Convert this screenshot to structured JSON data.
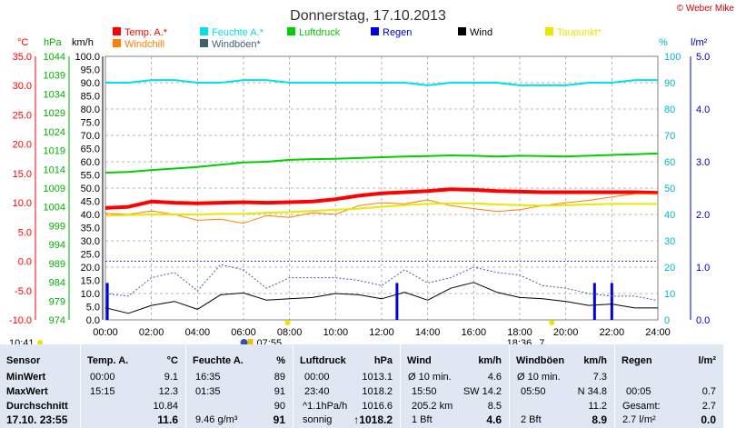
{
  "title": "Donnerstag, 17.10.2013",
  "copyright": "© Weber Mike",
  "legend": [
    {
      "label": "Temp. A.*",
      "color": "#ff0000"
    },
    {
      "label": "Feuchte A.*",
      "color": "#00e0e8"
    },
    {
      "label": "Luftdruck",
      "color": "#00d000"
    },
    {
      "label": "Regen",
      "color": "#0000e0"
    },
    {
      "label": "Wind",
      "color": "#000000"
    },
    {
      "label": "Taupunkt*",
      "color": "#e8e800"
    },
    {
      "label": "Windchill",
      "color": "#ff7f00"
    },
    {
      "label": "Windböen*",
      "color": "#406070"
    }
  ],
  "units": {
    "temp": "°C",
    "pressure": "hPa",
    "wind": "km/h",
    "humidity": "%",
    "rain": "l/m²"
  },
  "axes": {
    "temp_ticks": [
      "35.0",
      "30.0",
      "25.0",
      "20.0",
      "15.0",
      "10.0",
      "5.0",
      "0.0",
      "-5.0",
      "-10.0"
    ],
    "pressure_ticks": [
      "1044",
      "1039",
      "1034",
      "1029",
      "1024",
      "1019",
      "1014",
      "1009",
      "1004",
      "999",
      "994",
      "989",
      "984",
      "979",
      "974"
    ],
    "wind_ticks": [
      "100.0",
      "95.0",
      "90.0",
      "85.0",
      "80.0",
      "75.0",
      "70.0",
      "65.0",
      "60.0",
      "55.0",
      "50.0",
      "45.0",
      "40.0",
      "35.0",
      "30.0",
      "25.0",
      "20.0",
      "15.0",
      "10.0",
      "5.0",
      "0.0"
    ],
    "humidity_ticks": [
      "100",
      "90",
      "80",
      "70",
      "60",
      "50",
      "40",
      "30",
      "20",
      "10",
      "0"
    ],
    "rain_ticks": [
      "5.0",
      "4.0",
      "3.0",
      "2.0",
      "1.0",
      "0.0"
    ],
    "x_ticks": [
      "00:00",
      "02:00",
      "04:00",
      "06:00",
      "08:00",
      "10:00",
      "12:00",
      "14:00",
      "16:00",
      "18:00",
      "20:00",
      "22:00",
      "24:00"
    ]
  },
  "sun": {
    "moonrise": "10:41",
    "sunrise": "07:55",
    "sunset": "18:36",
    "moon_phase": "7"
  },
  "chart_data": {
    "type": "line",
    "x": [
      "00:00",
      "01:00",
      "02:00",
      "03:00",
      "04:00",
      "05:00",
      "06:00",
      "07:00",
      "08:00",
      "09:00",
      "10:00",
      "11:00",
      "12:00",
      "13:00",
      "14:00",
      "15:00",
      "16:00",
      "17:00",
      "18:00",
      "19:00",
      "20:00",
      "21:00",
      "22:00",
      "23:00",
      "24:00"
    ],
    "xlim": [
      "00:00",
      "24:00"
    ],
    "grid": true,
    "series": [
      {
        "name": "Temp. A.*",
        "axis": "temp",
        "values": [
          9.1,
          9.3,
          10.2,
          10.0,
          9.9,
          10.0,
          10.1,
          10.0,
          10.1,
          10.2,
          10.6,
          11.2,
          11.6,
          11.8,
          12.0,
          12.3,
          12.2,
          12.0,
          11.9,
          11.8,
          11.8,
          11.8,
          11.8,
          11.8,
          11.7
        ]
      },
      {
        "name": "Windchill",
        "axis": "temp",
        "values": [
          8.2,
          8.0,
          8.6,
          8.0,
          7.0,
          7.2,
          6.5,
          7.8,
          7.5,
          8.3,
          8.0,
          9.5,
          10.0,
          9.8,
          10.5,
          9.5,
          9.0,
          8.5,
          8.8,
          9.5,
          10.0,
          10.4,
          11.0,
          11.5,
          11.5
        ]
      },
      {
        "name": "Taupunkt*",
        "axis": "temp",
        "values": [
          7.8,
          7.9,
          8.0,
          8.0,
          8.0,
          8.1,
          8.1,
          8.3,
          8.4,
          8.6,
          8.8,
          9.0,
          9.3,
          9.6,
          9.8,
          9.9,
          9.9,
          9.7,
          9.6,
          9.5,
          9.6,
          9.7,
          9.8,
          9.8,
          9.8
        ]
      },
      {
        "name": "Feuchte A.*",
        "axis": "humidity",
        "values": [
          90,
          90,
          91,
          91,
          90,
          90,
          91,
          91,
          90,
          90,
          90,
          90,
          90,
          90,
          89,
          90,
          90,
          90,
          89,
          89,
          89,
          90,
          90,
          91,
          91
        ]
      },
      {
        "name": "Luftdruck",
        "axis": "pressure",
        "values": [
          1013.1,
          1013.3,
          1013.8,
          1014.2,
          1014.6,
          1015.2,
          1015.8,
          1016.0,
          1016.5,
          1016.7,
          1016.8,
          1017.0,
          1017.2,
          1017.4,
          1017.5,
          1017.7,
          1017.6,
          1017.4,
          1017.6,
          1017.5,
          1017.4,
          1017.6,
          1017.8,
          1018.0,
          1018.2
        ]
      },
      {
        "name": "Wind",
        "axis": "wind",
        "values": [
          4.6,
          2.5,
          5.5,
          7.0,
          4.0,
          9.5,
          10.2,
          7.5,
          8.0,
          8.5,
          10.0,
          9.5,
          8.0,
          10.5,
          7.5,
          12.0,
          14.2,
          10.5,
          8.5,
          8.0,
          7.0,
          5.5,
          6.0,
          4.5,
          4.5
        ]
      },
      {
        "name": "Windböen*",
        "axis": "wind",
        "values": [
          10.0,
          9.0,
          16.0,
          18.0,
          11.0,
          21.0,
          19.0,
          12.0,
          16.0,
          16.0,
          16.0,
          15.0,
          13.0,
          19.0,
          14.0,
          16.0,
          20.0,
          18.0,
          17.0,
          13.0,
          12.0,
          10.0,
          9.0,
          9.0,
          7.3
        ]
      }
    ],
    "rain_bars": [
      {
        "x": "00:05",
        "value": 0.7
      },
      {
        "x": "12:40",
        "value": 0.7
      },
      {
        "x": "21:15",
        "value": 0.7
      },
      {
        "x": "22:00",
        "value": 0.7
      }
    ],
    "temp_range": [
      -10,
      35
    ],
    "pressure_range": [
      974,
      1044
    ],
    "wind_range": [
      0,
      100
    ],
    "humidity_range": [
      0,
      100
    ],
    "rain_range": [
      0,
      5
    ]
  },
  "table": {
    "sensor": {
      "header": "Sensor",
      "rows": [
        "MinWert",
        "MaxWert",
        "Durchschnitt"
      ],
      "date": "17.10. 23:55"
    },
    "temp": {
      "header": "Temp. A.",
      "unit": "°C",
      "min": [
        "00:00",
        "9.1"
      ],
      "max": [
        "15:15",
        "12.3"
      ],
      "avg": "10.84",
      "current": "11.6"
    },
    "humidity": {
      "header": "Feuchte A.",
      "unit": "%",
      "min": [
        "16:35",
        "89"
      ],
      "max": [
        "01:35",
        "91"
      ],
      "avg": "90",
      "abs": "9.46 g/m³",
      "current": "91"
    },
    "pressure": {
      "header": "Luftdruck",
      "unit": "hPa",
      "min": [
        "00:00",
        "1013.1"
      ],
      "max": [
        "23:40",
        "1018.2"
      ],
      "trend": "^1.1hPa/h",
      "avg": "1016.6",
      "forecast": "sonnig",
      "current": "↑1018.2"
    },
    "wind": {
      "header": "Wind",
      "unit": "km/h",
      "r1": [
        "Ø 10 min.",
        "4.6"
      ],
      "r2": [
        "15:50",
        "SW 14.2"
      ],
      "r3": [
        "205.2 km",
        "8.5"
      ],
      "r4": [
        "1 Bft",
        "4.6"
      ]
    },
    "gust": {
      "header": "Windböen",
      "unit": "km/h",
      "r1": [
        "Ø 10 min.",
        "7.3"
      ],
      "r2": [
        "05:50",
        "N 34.8"
      ],
      "r3": [
        "",
        "11.2"
      ],
      "r4": [
        "2 Bft",
        "8.9"
      ]
    },
    "rain": {
      "header": "Regen",
      "unit": "l/m²",
      "r2": [
        "00:05",
        "0.7"
      ],
      "r3": [
        "Gesamt:",
        "2.7"
      ],
      "r4": [
        "2.7 l/m²",
        "0.0"
      ]
    }
  }
}
